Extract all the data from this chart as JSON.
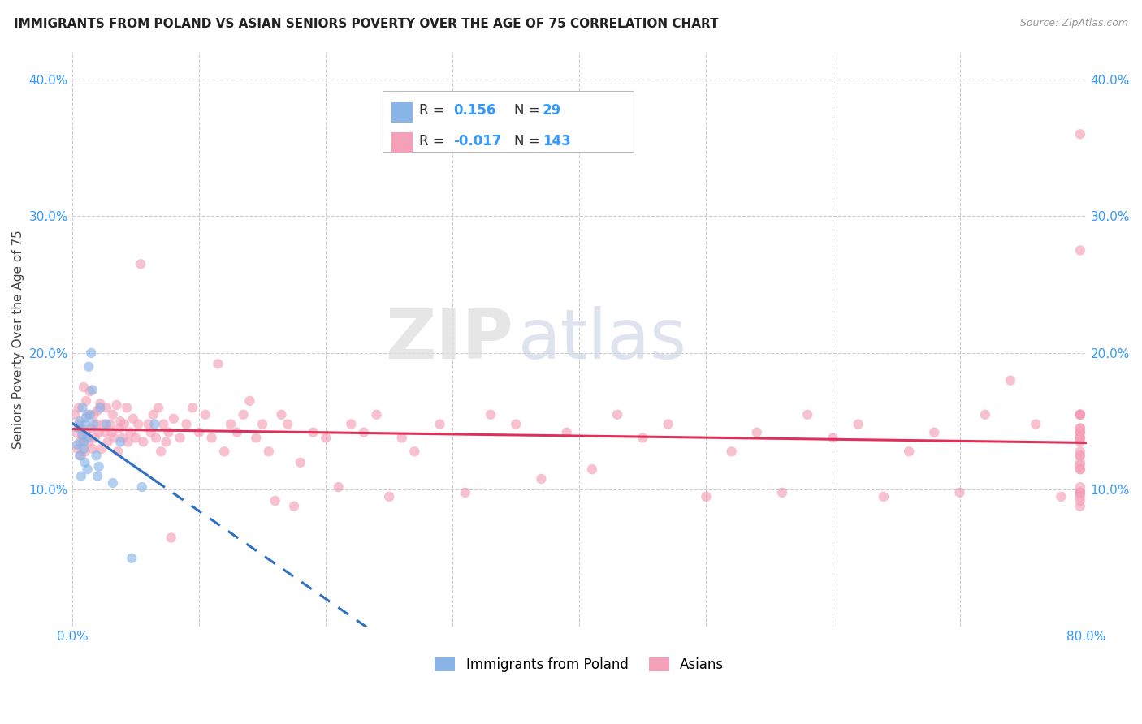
{
  "title": "IMMIGRANTS FROM POLAND VS ASIAN SENIORS POVERTY OVER THE AGE OF 75 CORRELATION CHART",
  "source": "Source: ZipAtlas.com",
  "ylabel": "Seniors Poverty Over the Age of 75",
  "xlim": [
    0.0,
    0.8
  ],
  "ylim": [
    0.0,
    0.42
  ],
  "grid_color": "#cccccc",
  "background_color": "#ffffff",
  "watermark_zip": "ZIP",
  "watermark_atlas": "atlas",
  "legend_R1": "0.156",
  "legend_N1": "29",
  "legend_R2": "-0.017",
  "legend_N2": "143",
  "legend_label1": "Immigrants from Poland",
  "legend_label2": "Asians",
  "color_poland": "#89b4e8",
  "color_asian": "#f4a0b8",
  "trendline_color_poland": "#3070c0",
  "trendline_color_asian": "#e0305a",
  "scatter_alpha": 0.65,
  "scatter_size": 80,
  "poland_x": [
    0.004,
    0.005,
    0.006,
    0.006,
    0.007,
    0.008,
    0.008,
    0.009,
    0.009,
    0.01,
    0.01,
    0.011,
    0.012,
    0.012,
    0.013,
    0.014,
    0.015,
    0.016,
    0.017,
    0.019,
    0.02,
    0.021,
    0.022,
    0.027,
    0.032,
    0.038,
    0.047,
    0.055,
    0.065
  ],
  "poland_y": [
    0.133,
    0.145,
    0.125,
    0.15,
    0.11,
    0.14,
    0.16,
    0.13,
    0.135,
    0.12,
    0.148,
    0.153,
    0.138,
    0.115,
    0.19,
    0.155,
    0.2,
    0.173,
    0.148,
    0.125,
    0.11,
    0.117,
    0.16,
    0.148,
    0.105,
    0.135,
    0.05,
    0.102,
    0.148
  ],
  "asian_x": [
    0.002,
    0.003,
    0.004,
    0.005,
    0.005,
    0.006,
    0.007,
    0.007,
    0.008,
    0.009,
    0.01,
    0.011,
    0.011,
    0.012,
    0.013,
    0.014,
    0.015,
    0.016,
    0.017,
    0.018,
    0.019,
    0.02,
    0.021,
    0.022,
    0.023,
    0.025,
    0.026,
    0.027,
    0.028,
    0.03,
    0.031,
    0.032,
    0.033,
    0.035,
    0.036,
    0.037,
    0.038,
    0.04,
    0.041,
    0.043,
    0.044,
    0.046,
    0.048,
    0.05,
    0.052,
    0.054,
    0.056,
    0.06,
    0.062,
    0.064,
    0.066,
    0.068,
    0.07,
    0.072,
    0.074,
    0.076,
    0.078,
    0.08,
    0.085,
    0.09,
    0.095,
    0.1,
    0.105,
    0.11,
    0.115,
    0.12,
    0.125,
    0.13,
    0.135,
    0.14,
    0.145,
    0.15,
    0.155,
    0.16,
    0.165,
    0.17,
    0.175,
    0.18,
    0.19,
    0.2,
    0.21,
    0.22,
    0.23,
    0.24,
    0.25,
    0.26,
    0.27,
    0.29,
    0.31,
    0.33,
    0.35,
    0.37,
    0.39,
    0.41,
    0.43,
    0.45,
    0.47,
    0.5,
    0.52,
    0.54,
    0.56,
    0.58,
    0.6,
    0.62,
    0.64,
    0.66,
    0.68,
    0.7,
    0.72,
    0.74,
    0.76,
    0.78,
    0.795,
    0.795,
    0.795,
    0.795,
    0.795,
    0.795,
    0.795,
    0.795,
    0.795,
    0.795,
    0.795,
    0.795,
    0.795,
    0.795,
    0.795,
    0.795,
    0.795,
    0.795,
    0.795,
    0.795,
    0.795,
    0.795,
    0.795,
    0.795,
    0.795,
    0.795,
    0.795,
    0.795,
    0.795,
    0.795,
    0.795
  ],
  "asian_y": [
    0.155,
    0.142,
    0.13,
    0.148,
    0.16,
    0.135,
    0.125,
    0.145,
    0.138,
    0.175,
    0.128,
    0.142,
    0.165,
    0.155,
    0.135,
    0.172,
    0.145,
    0.13,
    0.155,
    0.138,
    0.148,
    0.158,
    0.142,
    0.163,
    0.13,
    0.148,
    0.142,
    0.16,
    0.135,
    0.148,
    0.142,
    0.155,
    0.138,
    0.162,
    0.128,
    0.145,
    0.15,
    0.138,
    0.148,
    0.16,
    0.135,
    0.142,
    0.152,
    0.138,
    0.148,
    0.265,
    0.135,
    0.148,
    0.142,
    0.155,
    0.138,
    0.16,
    0.128,
    0.148,
    0.135,
    0.142,
    0.065,
    0.152,
    0.138,
    0.148,
    0.16,
    0.142,
    0.155,
    0.138,
    0.192,
    0.128,
    0.148,
    0.142,
    0.155,
    0.165,
    0.138,
    0.148,
    0.128,
    0.092,
    0.155,
    0.148,
    0.088,
    0.12,
    0.142,
    0.138,
    0.102,
    0.148,
    0.142,
    0.155,
    0.095,
    0.138,
    0.128,
    0.148,
    0.098,
    0.155,
    0.148,
    0.108,
    0.142,
    0.115,
    0.155,
    0.138,
    0.148,
    0.095,
    0.128,
    0.142,
    0.098,
    0.155,
    0.138,
    0.148,
    0.095,
    0.128,
    0.142,
    0.098,
    0.155,
    0.18,
    0.148,
    0.095,
    0.128,
    0.142,
    0.098,
    0.155,
    0.138,
    0.145,
    0.092,
    0.118,
    0.135,
    0.098,
    0.155,
    0.125,
    0.142,
    0.36,
    0.275,
    0.155,
    0.098,
    0.12,
    0.138,
    0.145,
    0.095,
    0.115,
    0.102,
    0.155,
    0.088,
    0.138,
    0.125,
    0.098,
    0.155,
    0.142,
    0.115
  ]
}
